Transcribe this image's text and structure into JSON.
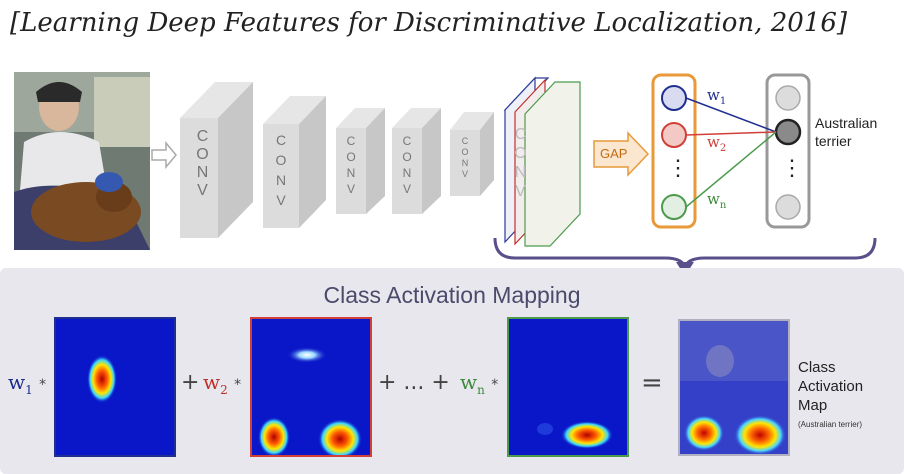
{
  "title": "[Learning Deep Features for Discriminative Localization, 2016]",
  "network": {
    "conv_layers": [
      "CONV",
      "CONV",
      "CONV",
      "CONV",
      "CONV",
      "CONV"
    ],
    "gap_label": "GAP",
    "weights": {
      "w1": "w",
      "w1_sub": "1",
      "w2": "w",
      "w2_sub": "2",
      "wn": "w",
      "wn_sub": "n"
    },
    "dots": "⋮",
    "output_label_line1": "Australian",
    "output_label_line2": "terrier"
  },
  "cam": {
    "title": "Class Activation Mapping",
    "terms": [
      {
        "coef": "w",
        "sub": "1",
        "op": "*",
        "color": "#1a2a8a"
      },
      {
        "coef": "w",
        "sub": "2",
        "op": "*",
        "color": "#c0302a"
      },
      {
        "coef": "w",
        "sub": "n",
        "op": "*",
        "color": "#3a8a3a"
      }
    ],
    "plus": "+",
    "ellipsis": "+ ... +",
    "equals": "=",
    "result_line1": "Class",
    "result_line2": "Activation",
    "result_line3": "Map",
    "result_sub": "(Australian terrier)"
  },
  "colors": {
    "blue": "#1f2f8f",
    "red": "#d04038",
    "green": "#4c9a4c",
    "orange": "#e89a3a",
    "gray": "#999999"
  }
}
